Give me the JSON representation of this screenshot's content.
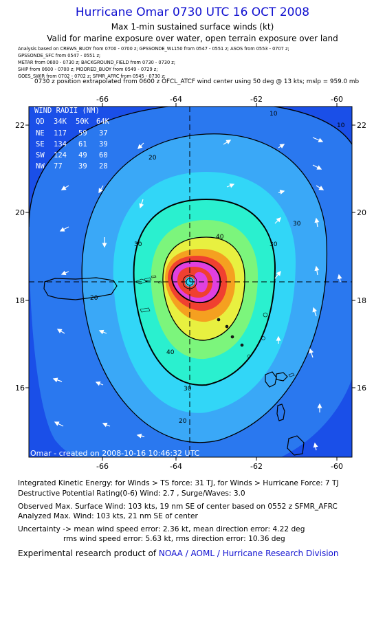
{
  "header": {
    "title": "Hurricane Omar 0730 UTC 16 OCT 2008",
    "subtitle": "Max 1-min sustained surface winds (kt)",
    "valid": "Valid for marine exposure over water, open terrain exposure over land",
    "sources": [
      "Analysis based on   CREWS_BUOY from 0700 - 0700 z;  GPSSONDE_WL150 from 0547 - 0551 z;  ASOS from 0553 - 0707 z;",
      "GPSSONDE_SFC from 0547 - 0551 z;",
      "METAR from 0600 - 0730 z;  BACKGROUND_FIELD from 0730 - 0730 z;",
      "SHIP from 0600 - 0700 z;   MOORED_BUOY from 0549 - 0729 z;",
      "GOES_SWIR from 0702 - 0702 z;  SFMR_AFRC from 0545 - 0730 z;"
    ],
    "position_note": "0730 z position extrapolated from 0600 z OFCL_ATCF wind center using 50 deg @ 13 kts; mslp = 959.0 mb"
  },
  "map": {
    "x_ticks": [
      "-66",
      "-64",
      "-62",
      "-60"
    ],
    "y_ticks": [
      "22",
      "20",
      "18",
      "16"
    ],
    "contour_labels": [
      "10",
      "20",
      "30",
      "40"
    ],
    "credit": "Omar - created on 2008-10-16 10:46:32 UTC",
    "wind_radii": {
      "title": "WIND RADII (NM)",
      "header": [
        "QD",
        "34K",
        "50K",
        "64K"
      ],
      "rows": [
        [
          "NE",
          "117",
          "59",
          "37"
        ],
        [
          "SE",
          "134",
          "61",
          "39"
        ],
        [
          "SW",
          "124",
          "49",
          "60"
        ],
        [
          "NW",
          "77",
          "39",
          "28"
        ]
      ]
    },
    "colors": {
      "ocean_blue": "#1a4fe8",
      "band_1": "#2a78ef",
      "band_2": "#3aa8f7",
      "band_3": "#32d6f7",
      "band_4": "#2af0cf",
      "band_5": "#7cf57c",
      "band_6": "#e8f040",
      "band_7": "#f5a020",
      "band_8": "#f04030",
      "band_9": "#e040e0"
    }
  },
  "stats": {
    "ike": "Integrated Kinetic Energy:  for Winds > TS force: 31 TJ,  for Winds > Hurricane Force: 7 TJ",
    "dpr": "Destructive Potential Rating(0-6)   Wind: 2.7 , Surge/Waves: 3.0",
    "observed_max": "Observed Max. Surface Wind: 103 kts, 19 nm SE of center based on 0552 z SFMR_AFRC",
    "analyzed_max": "Analyzed Max. Wind: 103 kts, 21 nm SE of center",
    "uncertainty_1": "Uncertainty -> mean wind speed error: 2.36 kt,   mean direction error: 4.22 deg",
    "uncertainty_2": "rms wind speed error: 5.63 kt,   rms direction error: 10.36 deg"
  },
  "footer": {
    "prefix": "Experimental research product of ",
    "link": "NOAA / AOML / Hurricane Research Division"
  }
}
